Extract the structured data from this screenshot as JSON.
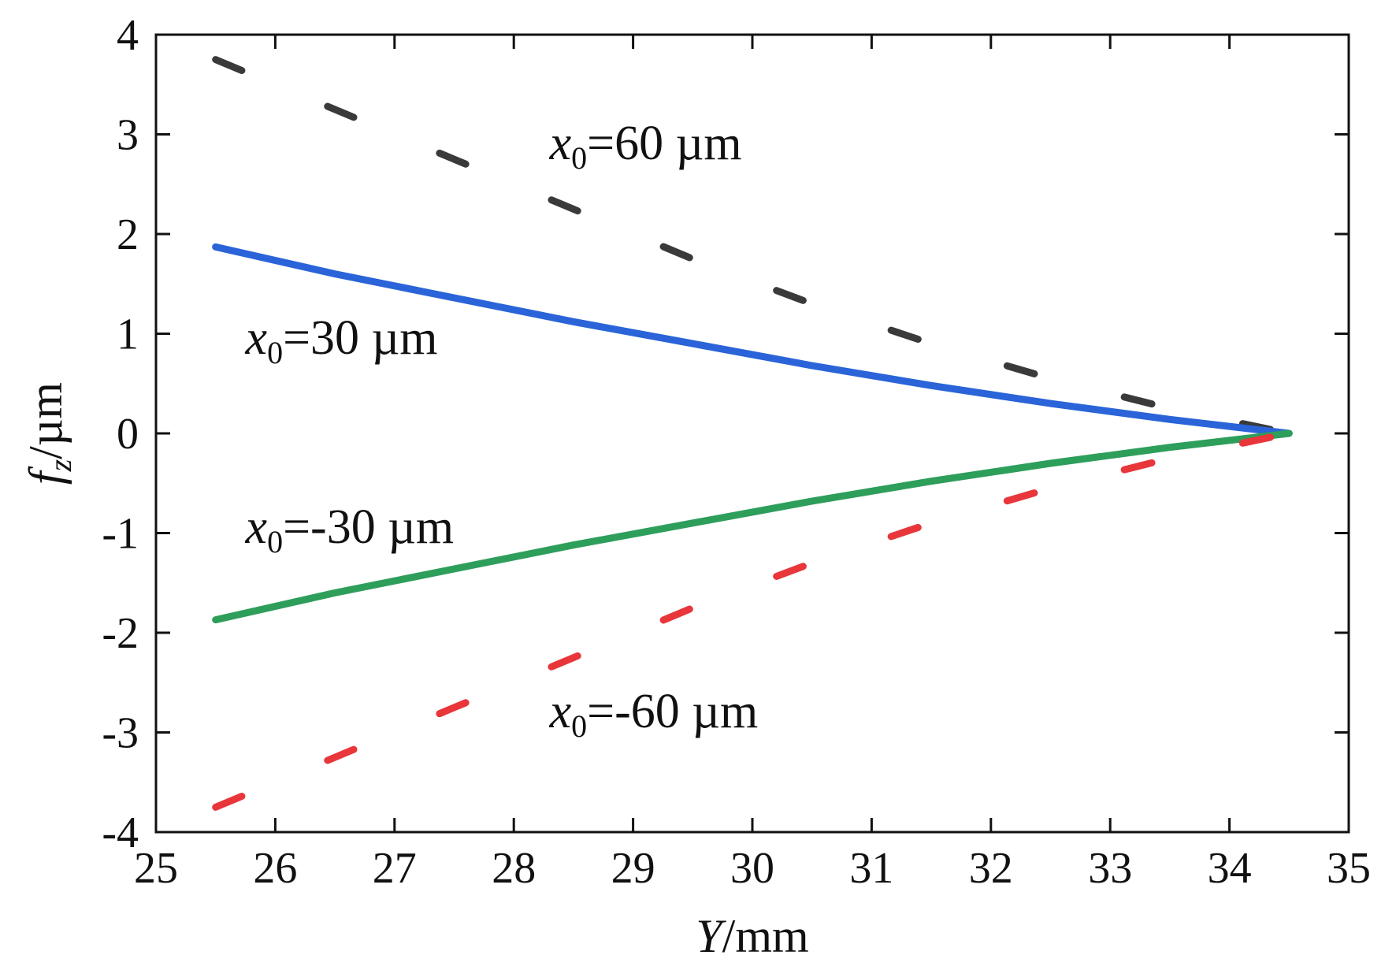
{
  "chart_data": {
    "type": "line",
    "title": "",
    "xlabel": {
      "var": "Y",
      "unit": "/mm"
    },
    "ylabel": {
      "var": "f",
      "sub": "z",
      "unit": "/µm"
    },
    "xlim": [
      25,
      35
    ],
    "ylim": [
      -4,
      4
    ],
    "xticks": [
      25,
      26,
      27,
      28,
      29,
      30,
      31,
      32,
      33,
      34,
      35
    ],
    "yticks": [
      4,
      3,
      2,
      1,
      0,
      -1,
      -2,
      -3,
      -4
    ],
    "tick_labels_x": [
      "25",
      "26",
      "27",
      "28",
      "29",
      "30",
      "31",
      "32",
      "33",
      "34",
      "35"
    ],
    "tick_labels_y": [
      "4",
      "3",
      "2",
      "1",
      "0",
      "-1",
      "-2",
      "-3",
      "-4"
    ],
    "series": [
      {
        "name": "x0=60 µm",
        "color": "#3a3a3a",
        "style": "dashed",
        "x": [
          25.5,
          26.5,
          27.5,
          28.5,
          29.5,
          30.5,
          31.5,
          32.5,
          33.5,
          34.5
        ],
        "y": [
          3.75,
          3.25,
          2.75,
          2.25,
          1.75,
          1.3,
          0.9,
          0.55,
          0.25,
          0.0
        ]
      },
      {
        "name": "x0=30 µm",
        "color": "#2a64d8",
        "style": "solid",
        "x": [
          25.5,
          26.5,
          27.5,
          28.5,
          29.5,
          30.5,
          31.5,
          32.5,
          33.5,
          34.5
        ],
        "y": [
          1.87,
          1.6,
          1.36,
          1.12,
          0.9,
          0.68,
          0.48,
          0.3,
          0.14,
          0.0
        ]
      },
      {
        "name": "x0=-30 µm",
        "color": "#2e9e5b",
        "style": "solid",
        "x": [
          25.5,
          26.5,
          27.5,
          28.5,
          29.5,
          30.5,
          31.5,
          32.5,
          33.5,
          34.5
        ],
        "y": [
          -1.87,
          -1.6,
          -1.36,
          -1.12,
          -0.9,
          -0.68,
          -0.48,
          -0.3,
          -0.14,
          0.0
        ]
      },
      {
        "name": "x0=-60 µm",
        "color": "#e8363a",
        "style": "dashed",
        "x": [
          25.5,
          26.5,
          27.5,
          28.5,
          29.5,
          30.5,
          31.5,
          32.5,
          33.5,
          34.5
        ],
        "y": [
          -3.75,
          -3.25,
          -2.75,
          -2.25,
          -1.75,
          -1.3,
          -0.9,
          -0.55,
          -0.25,
          0.0
        ]
      }
    ],
    "annotations": [
      {
        "var": "x",
        "sub": "0",
        "text": "=60 µm",
        "x": 28.3,
        "y": 2.75
      },
      {
        "var": "x",
        "sub": "0",
        "text": "=30 µm",
        "x": 25.75,
        "y": 0.8
      },
      {
        "var": "x",
        "sub": "0",
        "text": "=-30 µm",
        "x": 25.75,
        "y": -1.1
      },
      {
        "var": "x",
        "sub": "0",
        "text": "=-60 µm",
        "x": 28.3,
        "y": -2.95
      }
    ]
  }
}
